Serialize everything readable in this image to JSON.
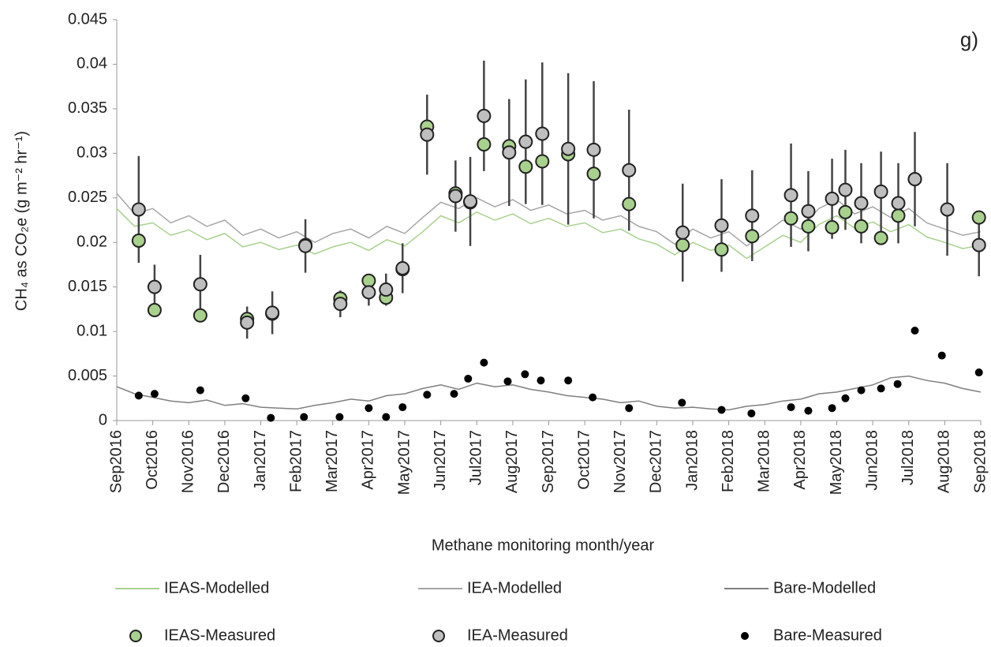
{
  "chart_data": {
    "type": "line",
    "annotation": "g)",
    "ylabel": "CH₄ as CO₂e (g m⁻² hr⁻¹)",
    "xlabel": "Methane monitoring month/year",
    "xlim": [
      0,
      24
    ],
    "xticks": [
      {
        "value": 0,
        "label": "Sep2016"
      },
      {
        "value": 1,
        "label": "Oct2016"
      },
      {
        "value": 2,
        "label": "Nov2016"
      },
      {
        "value": 3,
        "label": "Dec2016"
      },
      {
        "value": 4,
        "label": "Jan2017"
      },
      {
        "value": 5,
        "label": "Feb2017"
      },
      {
        "value": 6,
        "label": "Mar2017"
      },
      {
        "value": 7,
        "label": "Apr2017"
      },
      {
        "value": 8,
        "label": "May2017"
      },
      {
        "value": 9,
        "label": "Jun2017"
      },
      {
        "value": 10,
        "label": "Jul2017"
      },
      {
        "value": 11,
        "label": "Aug2017"
      },
      {
        "value": 12,
        "label": "Sep2017"
      },
      {
        "value": 13,
        "label": "Oct2017"
      },
      {
        "value": 14,
        "label": "Nov2017"
      },
      {
        "value": 15,
        "label": "Dec2017"
      },
      {
        "value": 16,
        "label": "Jan2018"
      },
      {
        "value": 17,
        "label": "Feb2018"
      },
      {
        "value": 18,
        "label": "Mar2018"
      },
      {
        "value": 19,
        "label": "Apr2018"
      },
      {
        "value": 20,
        "label": "May2018"
      },
      {
        "value": 21,
        "label": "Jun2018"
      },
      {
        "value": 22,
        "label": "Jul2018"
      },
      {
        "value": 23,
        "label": "Aug2018"
      },
      {
        "value": 24,
        "label": "Sep2018"
      }
    ],
    "ylim": [
      0,
      0.045
    ],
    "yticks": [
      0,
      0.005,
      0.01,
      0.015,
      0.02,
      0.025,
      0.03,
      0.035,
      0.04,
      0.045
    ],
    "series": [
      {
        "name": "IEAS-Modelled",
        "type": "line",
        "color": "#a9d18e",
        "x": [
          0,
          0.5,
          1,
          1.5,
          2,
          2.5,
          3,
          3.5,
          4,
          4.5,
          5,
          5.5,
          6,
          6.5,
          7,
          7.5,
          8,
          8.5,
          9,
          9.5,
          10,
          10.5,
          11,
          11.5,
          12,
          12.5,
          13,
          13.5,
          14,
          14.5,
          15,
          15.5,
          16,
          16.5,
          17,
          17.5,
          18,
          18.5,
          19,
          19.5,
          20,
          20.5,
          21,
          21.5,
          22,
          22.5,
          23,
          23.5,
          24
        ],
        "values": [
          0.0238,
          0.0218,
          0.0222,
          0.0208,
          0.0214,
          0.0203,
          0.021,
          0.0195,
          0.02,
          0.0192,
          0.0197,
          0.0187,
          0.0195,
          0.02,
          0.0191,
          0.0203,
          0.0196,
          0.0212,
          0.023,
          0.0222,
          0.0234,
          0.0225,
          0.0232,
          0.0221,
          0.0227,
          0.0218,
          0.0222,
          0.0211,
          0.0215,
          0.0204,
          0.0198,
          0.0186,
          0.02,
          0.0191,
          0.0197,
          0.0182,
          0.0195,
          0.0208,
          0.02,
          0.022,
          0.023,
          0.0216,
          0.0223,
          0.0212,
          0.022,
          0.0206,
          0.02,
          0.0193,
          0.0197
        ]
      },
      {
        "name": "IEA-Modelled",
        "type": "line",
        "color": "#a6a6a6",
        "x": [
          0,
          0.5,
          1,
          1.5,
          2,
          2.5,
          3,
          3.5,
          4,
          4.5,
          5,
          5.5,
          6,
          6.5,
          7,
          7.5,
          8,
          8.5,
          9,
          9.5,
          10,
          10.5,
          11,
          11.5,
          12,
          12.5,
          13,
          13.5,
          14,
          14.5,
          15,
          15.5,
          16,
          16.5,
          17,
          17.5,
          18,
          18.5,
          19,
          19.5,
          20,
          20.5,
          21,
          21.5,
          22,
          22.5,
          23,
          23.5,
          24
        ],
        "values": [
          0.0255,
          0.0232,
          0.0238,
          0.0222,
          0.023,
          0.0218,
          0.0225,
          0.0208,
          0.0215,
          0.0205,
          0.0212,
          0.02,
          0.021,
          0.0215,
          0.0205,
          0.0218,
          0.021,
          0.0228,
          0.0245,
          0.0238,
          0.025,
          0.024,
          0.0248,
          0.0236,
          0.0242,
          0.0232,
          0.0236,
          0.0225,
          0.023,
          0.0218,
          0.0212,
          0.0198,
          0.0215,
          0.0205,
          0.0212,
          0.0196,
          0.021,
          0.0225,
          0.0215,
          0.0238,
          0.0248,
          0.0232,
          0.024,
          0.0228,
          0.0238,
          0.0222,
          0.0215,
          0.0208,
          0.0212
        ]
      },
      {
        "name": "Bare-Modelled",
        "type": "line",
        "color": "#7f7f7f",
        "x": [
          0,
          0.5,
          1,
          1.5,
          2,
          2.5,
          3,
          3.5,
          4,
          4.5,
          5,
          5.5,
          6,
          6.5,
          7,
          7.5,
          8,
          8.5,
          9,
          9.5,
          10,
          10.5,
          11,
          11.5,
          12,
          12.5,
          13,
          13.5,
          14,
          14.5,
          15,
          15.5,
          16,
          16.5,
          17,
          17.5,
          18,
          18.5,
          19,
          19.5,
          20,
          20.5,
          21,
          21.5,
          22,
          22.5,
          23,
          23.5,
          24
        ],
        "values": [
          0.0038,
          0.003,
          0.0026,
          0.0022,
          0.002,
          0.0023,
          0.0017,
          0.0019,
          0.0015,
          0.0014,
          0.0013,
          0.0017,
          0.002,
          0.0024,
          0.0022,
          0.0028,
          0.003,
          0.0036,
          0.004,
          0.0035,
          0.0042,
          0.0038,
          0.004,
          0.0035,
          0.0032,
          0.0028,
          0.0026,
          0.0024,
          0.002,
          0.0022,
          0.0016,
          0.0014,
          0.0015,
          0.0013,
          0.0012,
          0.0016,
          0.0018,
          0.0022,
          0.0024,
          0.003,
          0.0032,
          0.0036,
          0.004,
          0.0048,
          0.005,
          0.0045,
          0.0042,
          0.0036,
          0.0032
        ]
      },
      {
        "name": "IEAS-Measured",
        "type": "scatter",
        "color": "#a9d18e",
        "x": [
          0.61,
          1.05,
          2.32,
          3.62,
          4.32,
          5.24,
          6.21,
          7.0,
          7.48,
          7.94,
          8.62,
          9.41,
          9.82,
          10.2,
          10.9,
          11.36,
          11.82,
          12.54,
          13.25,
          14.23,
          15.72,
          16.8,
          17.65,
          18.73,
          19.21,
          19.87,
          20.24,
          20.68,
          21.23,
          21.71,
          22.17,
          23.07,
          23.95
        ],
        "values": [
          0.0202,
          0.0124,
          0.0118,
          0.0114,
          0.012,
          0.0197,
          0.0137,
          0.0157,
          0.0138,
          0.017,
          0.033,
          0.0255,
          0.0245,
          0.031,
          0.0308,
          0.0285,
          0.0291,
          0.0299,
          0.0277,
          0.0243,
          0.0197,
          0.0192,
          0.0207,
          0.0227,
          0.0218,
          0.0217,
          0.0234,
          0.0218,
          0.0205,
          0.023,
          0.0271,
          null,
          0.0228
        ]
      },
      {
        "name": "IEA-Measured",
        "type": "scatter",
        "color": "#bfbfbf",
        "x": [
          0.61,
          1.05,
          2.32,
          3.62,
          4.32,
          5.24,
          6.21,
          7.0,
          7.48,
          7.94,
          8.62,
          9.41,
          9.82,
          10.2,
          10.9,
          11.36,
          11.82,
          12.54,
          13.25,
          14.23,
          15.72,
          16.8,
          17.65,
          18.73,
          19.21,
          19.87,
          20.24,
          20.68,
          21.23,
          21.71,
          22.17,
          23.07,
          23.95
        ],
        "values": [
          0.0237,
          0.015,
          0.0153,
          0.011,
          0.0121,
          0.0196,
          0.0131,
          0.0144,
          0.0147,
          0.0171,
          0.0321,
          0.0252,
          0.0246,
          0.0342,
          0.0301,
          0.0313,
          0.0322,
          0.0305,
          0.0304,
          0.0281,
          0.0211,
          0.0219,
          0.023,
          0.0253,
          0.0235,
          0.0249,
          0.0259,
          0.0244,
          0.0257,
          0.0244,
          0.0271,
          0.0237,
          0.0197
        ],
        "errors": [
          0.006,
          0.0025,
          0.0033,
          0.0018,
          0.0024,
          0.003,
          0.0015,
          0.0015,
          0.0018,
          0.0028,
          0.0045,
          0.004,
          0.005,
          0.0062,
          0.006,
          0.007,
          0.008,
          0.0085,
          0.0077,
          0.0068,
          0.0055,
          0.0052,
          0.0051,
          0.0058,
          0.0045,
          0.0045,
          0.0045,
          0.0045,
          0.0045,
          0.0045,
          0.0053,
          0.0052,
          0.0035
        ]
      },
      {
        "name": "Bare-Measured",
        "type": "scatter",
        "color": "#000000",
        "x": [
          0.61,
          1.05,
          2.32,
          3.58,
          4.28,
          5.2,
          6.19,
          7.0,
          7.48,
          7.94,
          8.62,
          9.37,
          9.76,
          10.2,
          10.86,
          11.34,
          11.78,
          12.54,
          13.22,
          14.23,
          15.7,
          16.8,
          17.63,
          18.73,
          19.21,
          19.87,
          20.24,
          20.68,
          21.23,
          21.69,
          22.17,
          22.92,
          23.95
        ],
        "values": [
          0.0028,
          0.003,
          0.0034,
          0.0025,
          0.0003,
          0.0004,
          0.0004,
          0.0014,
          0.0004,
          0.0015,
          0.0029,
          0.003,
          0.0047,
          0.0065,
          0.0044,
          0.0052,
          0.0045,
          0.0045,
          0.0026,
          0.0014,
          0.002,
          0.0012,
          0.0008,
          0.0015,
          0.0011,
          0.0014,
          0.0025,
          0.0034,
          0.0036,
          0.0041,
          0.0101,
          0.0073,
          0.0054
        ]
      }
    ]
  }
}
